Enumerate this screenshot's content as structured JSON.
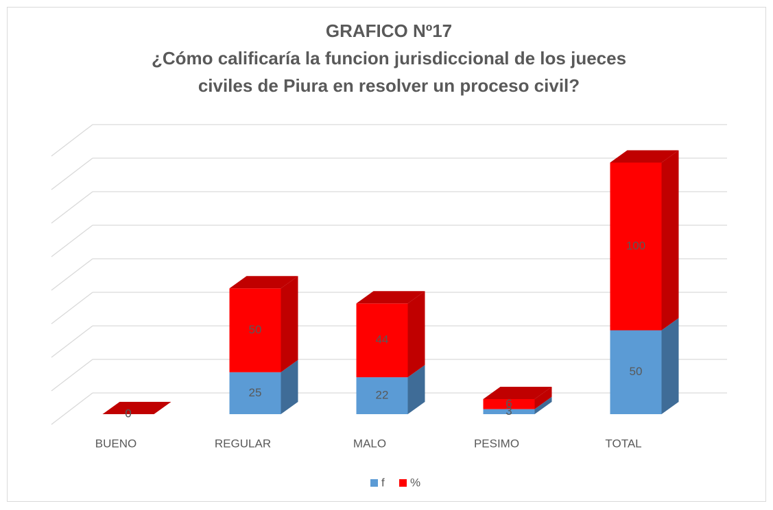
{
  "chart_data": {
    "type": "bar3d-stacked",
    "title": "GRAFICO Nº17",
    "subtitle": [
      "¿Cómo calificaría la funcion jurisdiccional de los jueces",
      "civiles de Piura en resolver un proceso civil?"
    ],
    "categories": [
      "BUENO",
      "REGULAR",
      "MALO",
      "PESIMO",
      "TOTAL"
    ],
    "series": [
      {
        "name": "f",
        "color": "#5b9bd5",
        "shade": "#3f6c97",
        "values": [
          0,
          25,
          22,
          3,
          50
        ]
      },
      {
        "name": "%",
        "color": "#ff0000",
        "shade": "#c00000",
        "values": [
          0,
          50,
          44,
          6,
          100
        ]
      }
    ],
    "ylim": [
      0,
      160
    ],
    "yticks": [
      0,
      20,
      40,
      60,
      80,
      100,
      120,
      140,
      160
    ],
    "grid": true,
    "legend": "bottom"
  }
}
